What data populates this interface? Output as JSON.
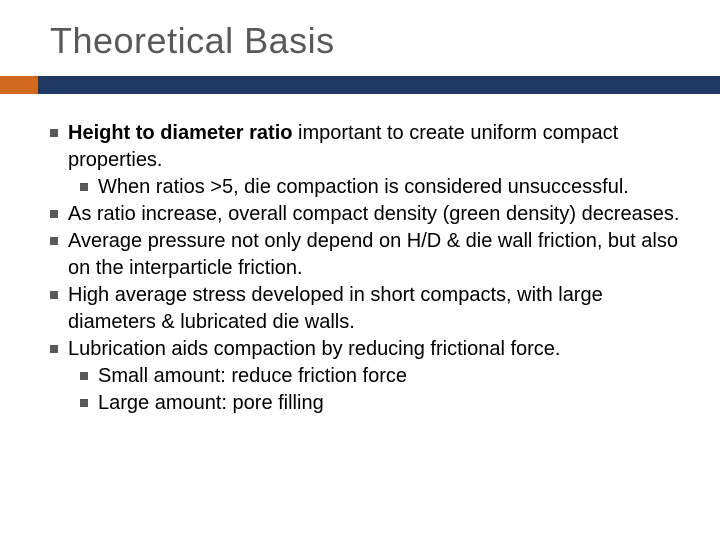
{
  "title": "Theoretical Basis",
  "colors": {
    "title_text": "#595959",
    "body_text": "#000000",
    "bullet": "#595959",
    "accent_orange": "#d2691e",
    "accent_blue": "#1f3864",
    "background": "#ffffff"
  },
  "typography": {
    "title_fontsize_pt": 27,
    "body_fontsize_pt": 15,
    "font_family": "Arial"
  },
  "bullets": [
    {
      "level": 1,
      "bold_prefix": "Height to diameter ratio",
      "rest": " important to create uniform compact properties."
    },
    {
      "level": 2,
      "text": "When ratios >5, die compaction is considered unsuccessful."
    },
    {
      "level": 1,
      "text": "As ratio increase, overall compact density (green density) decreases."
    },
    {
      "level": 1,
      "text": "Average pressure not only depend on H/D & die wall friction, but also on the interparticle friction."
    },
    {
      "level": 1,
      "text": "High average stress developed in short compacts, with large diameters & lubricated die walls."
    },
    {
      "level": 1,
      "text": "Lubrication aids compaction by reducing frictional force."
    },
    {
      "level": 2,
      "text": "Small amount: reduce friction force"
    },
    {
      "level": 2,
      "text": "Large amount: pore filling"
    }
  ]
}
